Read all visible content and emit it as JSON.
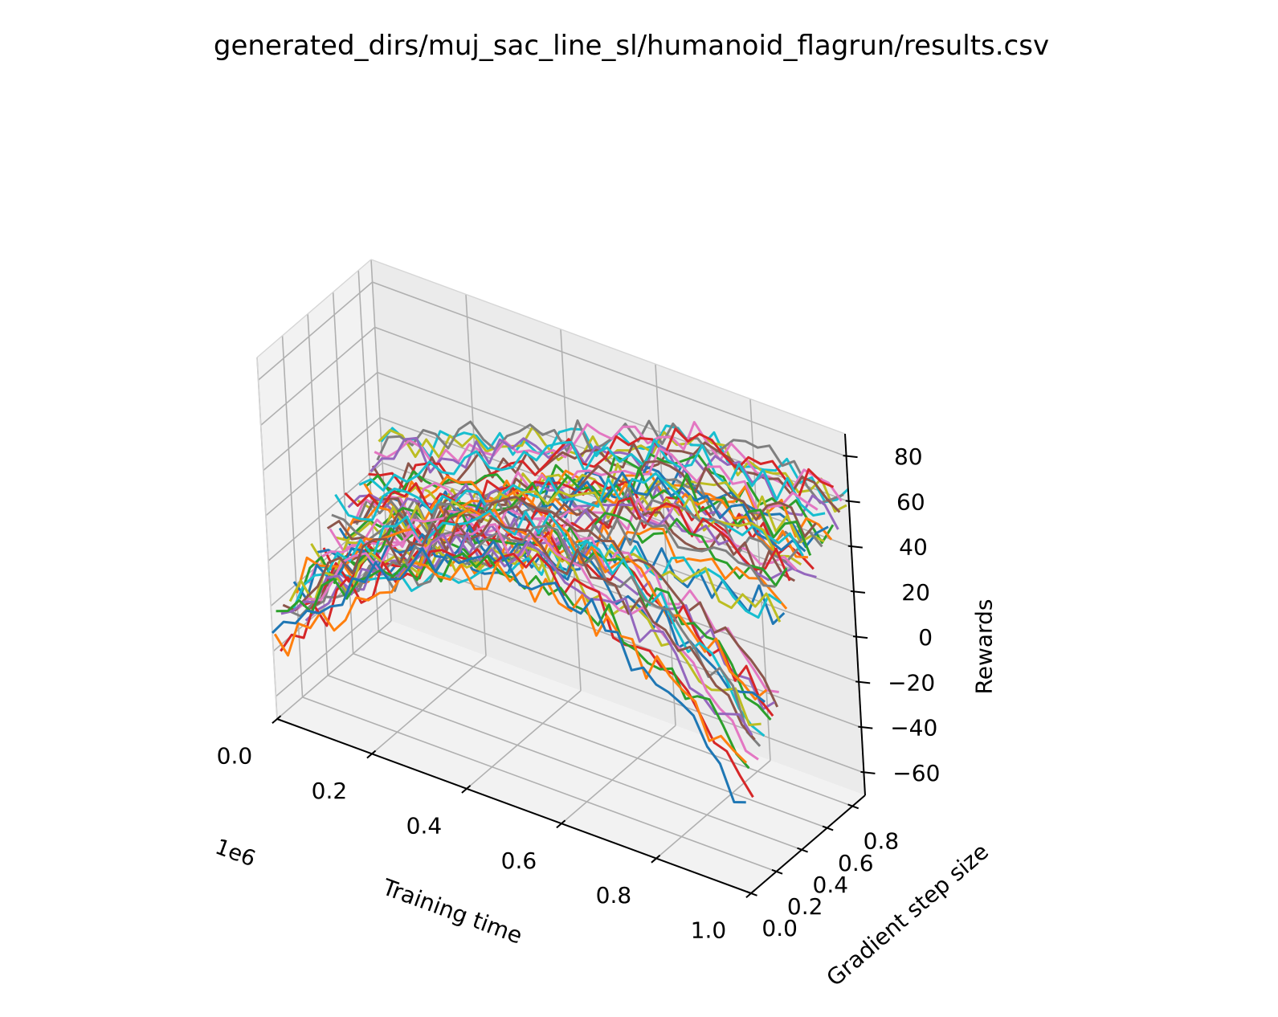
{
  "chart_data": {
    "type": "line",
    "projection": "3d",
    "title": "generated_dirs/muj_sac_line_sl/humanoid_flagrun/results.csv",
    "xlabel": "Training time",
    "x_offset_label": "1e6",
    "ylabel": "Gradient step size",
    "zlabel": "Rewards",
    "x_ticks": [
      "0.0",
      "0.2",
      "0.4",
      "0.6",
      "0.8",
      "1.0"
    ],
    "y_ticks": [
      "0.0",
      "0.2",
      "0.4",
      "0.6",
      "0.8"
    ],
    "z_ticks": [
      "−60",
      "−40",
      "−20",
      "0",
      "20",
      "40",
      "60",
      "80"
    ],
    "xlim": [
      0,
      1.0
    ],
    "ylim": [
      0,
      0.9
    ],
    "zlim": [
      -70,
      90
    ],
    "grid": true,
    "legend": "none",
    "series_count": 50,
    "points_per_series": 40,
    "palette": [
      "#1f77b4",
      "#ff7f0e",
      "#2ca02c",
      "#d62728",
      "#9467bd",
      "#8c564b",
      "#e377c2",
      "#7f7f7f",
      "#bcbd22",
      "#17becf"
    ],
    "highlight_series": [
      {
        "color": "#1f77b4",
        "y": 0.0,
        "reward_range": [
          -65,
          -20
        ],
        "minimum_at_x": 0.97
      },
      {
        "color": "#2ca02c",
        "y": 0.04,
        "reward_range": [
          -50,
          -20
        ]
      },
      {
        "color": "#e377c2",
        "y": 0.02,
        "reward_range": [
          -45,
          -25
        ]
      },
      {
        "color": "#17becf",
        "y": 0.06,
        "reward_range": [
          -25,
          -5
        ]
      },
      {
        "color": "#7f7f7f",
        "y": 0.52,
        "reward_range": [
          -30,
          80
        ],
        "peak_at_x": 0.47
      }
    ]
  }
}
